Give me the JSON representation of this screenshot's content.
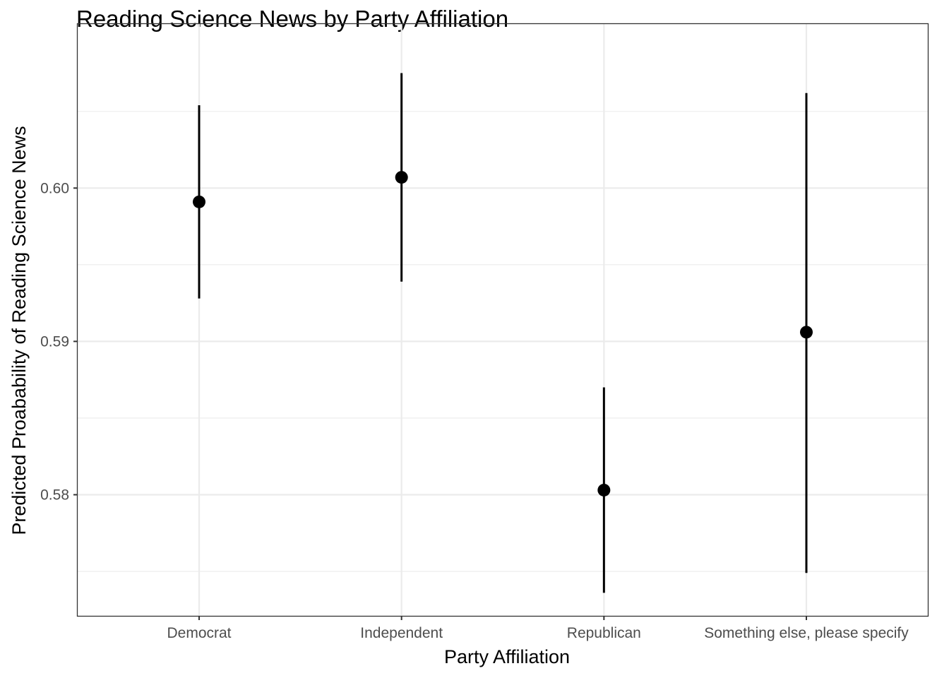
{
  "chart_data": {
    "type": "scatter",
    "title": "Reading Science News by Party Affiliation",
    "xlabel": "Party Affiliation",
    "ylabel": "Predicted Proabability of Reading  Science News",
    "categories": [
      "Democrat",
      "Independent",
      "Republican",
      "Something else, please specify"
    ],
    "values": [
      0.5991,
      0.6007,
      0.5803,
      0.5906
    ],
    "lower": [
      0.5928,
      0.5939,
      0.5736,
      0.5749
    ],
    "upper": [
      0.6054,
      0.6075,
      0.587,
      0.6062
    ],
    "ylim": [
      0.5721,
      0.6107
    ],
    "yticks": [
      0.58,
      0.59,
      0.6
    ],
    "ytick_labels": [
      "0.58",
      "0.59",
      "0.60"
    ],
    "grid": true,
    "legend": "none",
    "colors": {
      "point": "#000000",
      "errorbar": "#000000",
      "grid": "#ebebeb",
      "panel_border": "#333333",
      "tick_label": "#4d4d4d"
    }
  }
}
